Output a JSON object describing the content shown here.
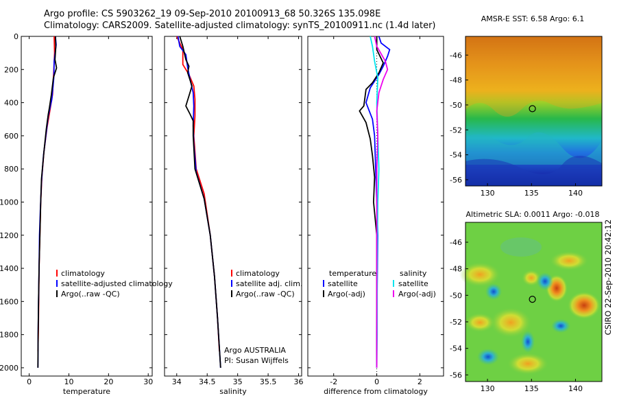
{
  "header": {
    "line1": "Argo profile: CS 5903262_19 09-Sep-2010 20100913_68 50.326S 135.098E",
    "line2": "Climatology: CARS2009. Satellite-adjusted climatology: synTS_20100911.nc (1.4d later)"
  },
  "footer_vertical": "CSIRO 22-Sep-2010 20:42:12",
  "colors": {
    "climatology": "#ff0000",
    "satellite": "#0000ff",
    "argo": "#000000",
    "satellite_salinity": "#00e5ee",
    "argo_salinity": "#ee00ee"
  },
  "chart_data": [
    {
      "type": "line",
      "xlabel": "temperature",
      "ylabel": "",
      "xlim": [
        -2,
        31
      ],
      "ylim": [
        2050,
        0
      ],
      "y_reversed": true,
      "xticks": [
        "0",
        "10",
        "20",
        "30"
      ],
      "yticks": [
        "0",
        "200",
        "400",
        "600",
        "800",
        "1000",
        "1200",
        "1400",
        "1600",
        "1800",
        "2000"
      ],
      "legend_position": "bottom-right",
      "legend": [
        "climatology",
        "satellite-adjusted climatology",
        "Argo(..raw -QC)"
      ],
      "series": [
        {
          "name": "climatology",
          "color": "#ff0000",
          "points": [
            [
              6.3,
              0
            ],
            [
              6.4,
              100
            ],
            [
              6.2,
              200
            ],
            [
              5.9,
              350
            ],
            [
              5.2,
              450
            ],
            [
              4.5,
              550
            ],
            [
              3.7,
              700
            ],
            [
              3.2,
              850
            ],
            [
              2.9,
              1000
            ],
            [
              2.7,
              1200
            ],
            [
              2.5,
              1400
            ],
            [
              2.4,
              1600
            ],
            [
              2.3,
              1800
            ],
            [
              2.2,
              1900
            ]
          ]
        },
        {
          "name": "satellite-adjusted climatology",
          "color": "#0000ff",
          "points": [
            [
              6.6,
              0
            ],
            [
              6.8,
              50
            ],
            [
              6.3,
              150
            ],
            [
              6.2,
              250
            ],
            [
              5.7,
              380
            ],
            [
              4.8,
              480
            ],
            [
              4.2,
              600
            ],
            [
              3.6,
              720
            ],
            [
              3.1,
              880
            ],
            [
              2.8,
              1050
            ],
            [
              2.6,
              1200
            ],
            [
              2.5,
              1400
            ],
            [
              2.35,
              1600
            ],
            [
              2.25,
              1800
            ],
            [
              2.2,
              2000
            ]
          ]
        },
        {
          "name": "Argo(..raw -QC)",
          "color": "#000000",
          "points": [
            [
              6.6,
              0
            ],
            [
              6.7,
              60
            ],
            [
              6.5,
              140
            ],
            [
              6.9,
              190
            ],
            [
              6.1,
              250
            ],
            [
              5.6,
              350
            ],
            [
              5.1,
              430
            ],
            [
              4.8,
              470
            ],
            [
              4.3,
              560
            ],
            [
              3.7,
              700
            ],
            [
              3.1,
              860
            ],
            [
              2.9,
              1000
            ],
            [
              2.7,
              1200
            ],
            [
              2.5,
              1400
            ],
            [
              2.35,
              1600
            ],
            [
              2.25,
              1800
            ],
            [
              2.2,
              2000
            ]
          ]
        }
      ]
    },
    {
      "type": "line",
      "xlabel": "salinity",
      "ylabel": "",
      "xlim": [
        33.8,
        36.05
      ],
      "ylim": [
        2050,
        0
      ],
      "y_reversed": true,
      "xticks": [
        "34",
        "34.5",
        "35",
        "35.5",
        "36"
      ],
      "legend_position": "bottom-right",
      "legend": [
        "climatology",
        "satellite adj. clim.",
        "Argo(..raw -QC)"
      ],
      "annotations": [
        "Argo AUSTRALIA",
        "PI: Susan Wijffels"
      ],
      "series": [
        {
          "name": "climatology",
          "color": "#ff0000",
          "points": [
            [
              34.0,
              0
            ],
            [
              34.1,
              80
            ],
            [
              34.1,
              170
            ],
            [
              34.2,
              230
            ],
            [
              34.28,
              300
            ],
            [
              34.3,
              380
            ],
            [
              34.3,
              480
            ],
            [
              34.28,
              600
            ],
            [
              34.32,
              800
            ],
            [
              34.45,
              950
            ],
            [
              34.55,
              1200
            ],
            [
              34.62,
              1450
            ],
            [
              34.67,
              1700
            ],
            [
              34.7,
              1900
            ]
          ]
        },
        {
          "name": "satellite adj. clim.",
          "color": "#0000ff",
          "points": [
            [
              34.02,
              0
            ],
            [
              34.05,
              60
            ],
            [
              34.15,
              110
            ],
            [
              34.18,
              190
            ],
            [
              34.22,
              260
            ],
            [
              34.27,
              340
            ],
            [
              34.28,
              420
            ],
            [
              34.27,
              540
            ],
            [
              34.28,
              650
            ],
            [
              34.32,
              820
            ],
            [
              34.45,
              980
            ],
            [
              34.55,
              1200
            ],
            [
              34.62,
              1450
            ],
            [
              34.67,
              1700
            ],
            [
              34.72,
              2000
            ]
          ]
        },
        {
          "name": "Argo(..raw -QC)",
          "color": "#000000",
          "points": [
            [
              34.05,
              0
            ],
            [
              34.1,
              60
            ],
            [
              34.15,
              140
            ],
            [
              34.2,
              180
            ],
            [
              34.18,
              220
            ],
            [
              34.25,
              300
            ],
            [
              34.2,
              360
            ],
            [
              34.15,
              420
            ],
            [
              34.22,
              470
            ],
            [
              34.27,
              510
            ],
            [
              34.27,
              600
            ],
            [
              34.3,
              800
            ],
            [
              34.45,
              980
            ],
            [
              34.55,
              1200
            ],
            [
              34.62,
              1450
            ],
            [
              34.67,
              1700
            ],
            [
              34.72,
              2000
            ]
          ]
        }
      ]
    },
    {
      "type": "line",
      "xlabel": "difference from climatology",
      "ylabel": "",
      "xlim": [
        -3.2,
        3.1
      ],
      "ylim": [
        2050,
        0
      ],
      "y_reversed": true,
      "xticks": [
        "-2",
        "0",
        "2"
      ],
      "legend_position": "bottom-right",
      "legend_temperature": [
        "temperature",
        "satellite",
        "Argo(-adj)"
      ],
      "legend_salinity": [
        "salinity",
        "satellite",
        "Argo(-adj)"
      ],
      "series": [
        {
          "name": "temperature satellite",
          "color": "#0000ff",
          "points": [
            [
              0.1,
              0
            ],
            [
              0.2,
              40
            ],
            [
              0.6,
              80
            ],
            [
              0.5,
              120
            ],
            [
              0.3,
              180
            ],
            [
              0.1,
              230
            ],
            [
              -0.3,
              310
            ],
            [
              -0.5,
              400
            ],
            [
              -0.2,
              500
            ],
            [
              -0.1,
              600
            ],
            [
              -0.05,
              800
            ],
            [
              0.0,
              1000
            ],
            [
              0.05,
              1200
            ],
            [
              0.02,
              1500
            ],
            [
              0.0,
              1800
            ],
            [
              0.0,
              2000
            ]
          ]
        },
        {
          "name": "temperature Argo(-adj)",
          "color": "#000000",
          "points": [
            [
              0.0,
              0
            ],
            [
              0.0,
              80
            ],
            [
              0.3,
              160
            ],
            [
              0.1,
              220
            ],
            [
              -0.2,
              280
            ],
            [
              -0.5,
              320
            ],
            [
              -0.6,
              420
            ],
            [
              -0.8,
              450
            ],
            [
              -0.5,
              520
            ],
            [
              -0.3,
              620
            ],
            [
              -0.2,
              720
            ],
            [
              -0.1,
              850
            ],
            [
              -0.15,
              1000
            ],
            [
              0.0,
              1200
            ],
            [
              0.0,
              1500
            ],
            [
              0.0,
              2000
            ]
          ]
        },
        {
          "name": "salinity satellite",
          "color": "#00e5ee",
          "points": [
            [
              -0.3,
              0
            ],
            [
              -0.2,
              60
            ],
            [
              -0.1,
              150
            ],
            [
              0.05,
              250
            ],
            [
              0.0,
              400
            ],
            [
              0.05,
              600
            ],
            [
              0.1,
              800
            ],
            [
              0.05,
              1000
            ],
            [
              0.02,
              1400
            ],
            [
              0.02,
              1800
            ],
            [
              0.0,
              2000
            ]
          ]
        },
        {
          "name": "salinity Argo(-adj)",
          "color": "#ee00ee",
          "points": [
            [
              -0.1,
              0
            ],
            [
              0.0,
              60
            ],
            [
              0.4,
              150
            ],
            [
              0.5,
              200
            ],
            [
              0.3,
              260
            ],
            [
              0.1,
              340
            ],
            [
              0.0,
              450
            ],
            [
              0.05,
              600
            ],
            [
              0.0,
              800
            ],
            [
              0.0,
              1000
            ],
            [
              0.0,
              1500
            ],
            [
              0.0,
              2000
            ]
          ]
        }
      ]
    },
    {
      "type": "heatmap",
      "title": "AMSR-E SST: 6.58 Argo: 6.1",
      "xlim": [
        127.5,
        143
      ],
      "ylim": [
        -56.5,
        -44.5
      ],
      "xticks": [
        "130",
        "135",
        "140"
      ],
      "yticks": [
        "-46",
        "-48",
        "-50",
        "-52",
        "-54",
        "-56"
      ],
      "marker": {
        "lon": 135.1,
        "lat": -50.3
      }
    },
    {
      "type": "heatmap",
      "title": "Altimetric SLA: 0.0011 Argo: -0.018",
      "xlim": [
        127.5,
        143
      ],
      "ylim": [
        -56.5,
        -44.5
      ],
      "xticks": [
        "130",
        "135",
        "140"
      ],
      "yticks": [
        "-46",
        "-48",
        "-50",
        "-52",
        "-54",
        "-56"
      ],
      "marker": {
        "lon": 135.1,
        "lat": -50.3
      }
    }
  ]
}
